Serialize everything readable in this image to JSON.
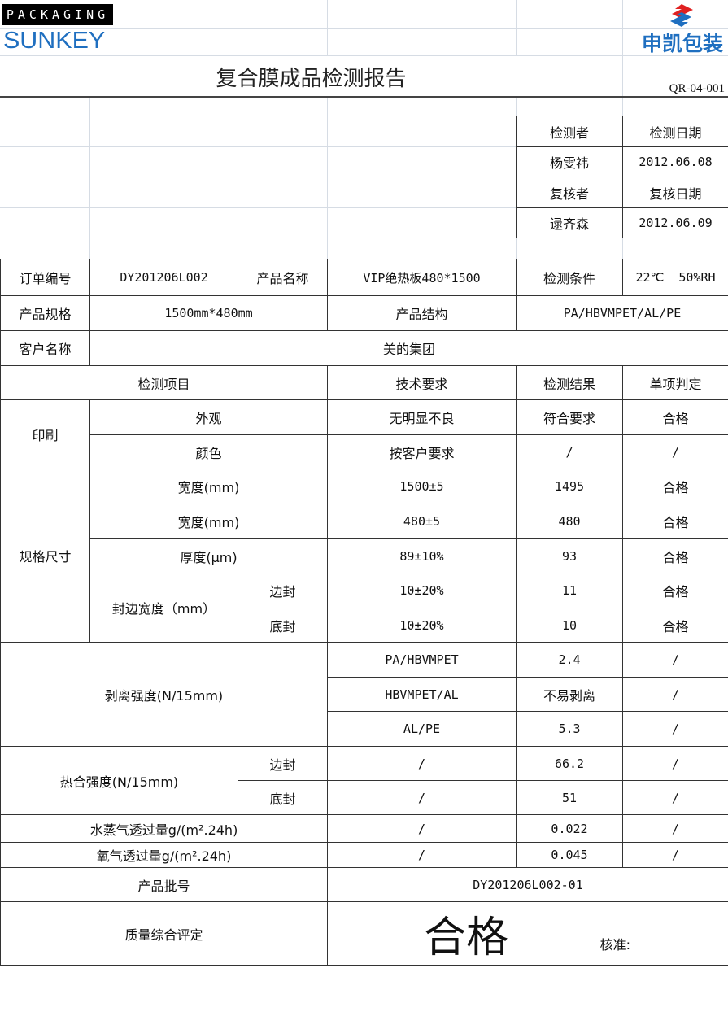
{
  "header": {
    "logo_left_top": "PACKAGING",
    "logo_left_bottom": "SUNKEY",
    "logo_right": "申凯包装",
    "title": "复合膜成品检测报告",
    "doc_code": "QR-04-001",
    "brand_color": "#1f6fc0",
    "accent_red": "#e02020"
  },
  "signoff": {
    "inspector_label": "检测者",
    "inspect_date_label": "检测日期",
    "inspector": "杨雯祎",
    "inspect_date": "2012.06.08",
    "reviewer_label": "复核者",
    "review_date_label": "复核日期",
    "reviewer": "逯齐森",
    "review_date": "2012.06.09"
  },
  "info": {
    "order_label": "订单编号",
    "order": "DY201206L002",
    "name_label": "产品名称",
    "name": "VIP绝热板480*1500",
    "cond_label": "检测条件",
    "cond": "22℃  50%RH",
    "spec_label": "产品规格",
    "spec": "1500mm*480mm",
    "struct_label": "产品结构",
    "struct": "PA/HBVMPET/AL/PE",
    "customer_label": "客户名称",
    "customer": "美的集团"
  },
  "cols": {
    "item": "检测项目",
    "req": "技术要求",
    "result": "检测结果",
    "judge": "单项判定"
  },
  "rows": {
    "print": "印刷",
    "appearance": [
      "外观",
      "无明显不良",
      "符合要求",
      "合格"
    ],
    "color": [
      "颜色",
      "按客户要求",
      "/",
      "/"
    ],
    "size": "规格尺寸",
    "width1": [
      "宽度(mm)",
      "1500±5",
      "1495",
      "合格"
    ],
    "width2": [
      "宽度(mm)",
      "480±5",
      "480",
      "合格"
    ],
    "thick": [
      "厚度(μm)",
      "89±10%",
      "93",
      "合格"
    ],
    "seal": "封边宽度（mm）",
    "seal_side": [
      "边封",
      "10±20%",
      "11",
      "合格"
    ],
    "seal_bottom": [
      "底封",
      "10±20%",
      "10",
      "合格"
    ],
    "peel": "剥离强度(N/15mm)",
    "peel1": [
      "PA/HBVMPET",
      "2.4",
      "/"
    ],
    "peel2": [
      "HBVMPET/AL",
      "不易剥离",
      "/"
    ],
    "peel3": [
      "AL/PE",
      "5.3",
      "/"
    ],
    "heat": "热合强度(N/15mm)",
    "heat_side": [
      "边封",
      "/",
      "66.2",
      "/"
    ],
    "heat_bottom": [
      "底封",
      "/",
      "51",
      "/"
    ],
    "wvtr": [
      "水蒸气透过量g/(m².24h)",
      "/",
      "0.022",
      "/"
    ],
    "otr": [
      "氧气透过量g/(m².24h)",
      "/",
      "0.045",
      "/"
    ],
    "batch": [
      "产品批号",
      "DY201206L002-01"
    ],
    "overall": [
      "质量综合评定",
      "合格",
      "核准:"
    ]
  }
}
